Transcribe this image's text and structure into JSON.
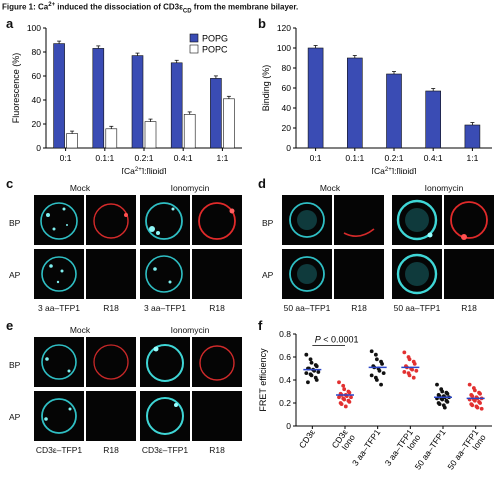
{
  "figure": {
    "title_prefix": "Figure 1: Ca",
    "title_sup": "2+",
    "title_mid": " induced the dissociation of CD3ε",
    "title_sub": "CD",
    "title_suffix": " from the membrane bilayer."
  },
  "colors": {
    "popg": "#3a4cb4",
    "popc": "#ffffff",
    "cyan": "#3fd6d6",
    "red": "#e23030",
    "black_dot": "#111111",
    "mean_line": "#2a45c8"
  },
  "panels": {
    "a": {
      "letter": "a"
    },
    "b": {
      "letter": "b"
    },
    "c": {
      "letter": "c",
      "mock": "Mock",
      "iono": "Ionomycin",
      "row1": "BP",
      "row2": "AP",
      "cap1": "3 aa–TFP1",
      "cap2": "R18",
      "cap3": "3 aa–TFP1",
      "cap4": "R18"
    },
    "d": {
      "letter": "d",
      "mock": "Mock",
      "iono": "Ionomycin",
      "row1": "BP",
      "row2": "AP",
      "cap1": "50 aa–TFP1",
      "cap2": "R18",
      "cap3": "50 aa–TFP1",
      "cap4": "R18"
    },
    "e": {
      "letter": "e",
      "mock": "Mock",
      "iono": "Ionomycin",
      "row1": "BP",
      "row2": "AP",
      "cap1": "CD3ε–TFP1",
      "cap2": "R18",
      "cap3": "CD3ε–TFP1",
      "cap4": "R18"
    },
    "f": {
      "letter": "f"
    }
  },
  "chart_data": [
    {
      "id": "a",
      "type": "bar",
      "categories": [
        "0:1",
        "0.1:1",
        "0.2:1",
        "0.4:1",
        "1:1"
      ],
      "series": [
        {
          "name": "POPG",
          "values": [
            87,
            83,
            77,
            71,
            58
          ]
        },
        {
          "name": "POPC",
          "values": [
            12,
            16,
            22,
            28,
            41
          ]
        }
      ],
      "xlabel": "[Ca2+]:[lipid]",
      "ylabel": "Fluorescence (%)",
      "ylim": [
        0,
        100
      ],
      "yticks": [
        0,
        20,
        40,
        60,
        80,
        100
      ],
      "legend": "top-right",
      "error_bars": true
    },
    {
      "id": "b",
      "type": "bar",
      "categories": [
        "0:1",
        "0.1:1",
        "0.2:1",
        "0.4:1",
        "1:1"
      ],
      "series": [
        {
          "values": [
            100,
            90,
            74,
            57,
            23
          ]
        }
      ],
      "xlabel": "[Ca2+]:[lipid]",
      "ylabel": "Binding (%)",
      "ylim": [
        0,
        120
      ],
      "yticks": [
        0,
        20,
        40,
        60,
        80,
        100,
        120
      ],
      "error_bars": true
    },
    {
      "id": "f",
      "type": "scatter",
      "categories": [
        "CD3ε",
        "CD3ε Iono",
        "3 aa–TFP1",
        "3 aa–TFP1 Iono",
        "50 aa–TFP1",
        "50 aa–TFP1 Iono"
      ],
      "ylabel": "FRET efficiency",
      "ylim": [
        0,
        0.8
      ],
      "yticks": [
        0,
        0.2,
        0.4,
        0.6,
        0.8
      ],
      "means": [
        0.49,
        0.27,
        0.51,
        0.51,
        0.25,
        0.24
      ],
      "annotation": "P < 0.0001",
      "points": [
        [
          0.62,
          0.58,
          0.55,
          0.53,
          0.52,
          0.5,
          0.5,
          0.49,
          0.48,
          0.47,
          0.46,
          0.45,
          0.44,
          0.42,
          0.4,
          0.38
        ],
        [
          0.38,
          0.35,
          0.32,
          0.3,
          0.29,
          0.28,
          0.27,
          0.27,
          0.26,
          0.25,
          0.25,
          0.24,
          0.23,
          0.22,
          0.21,
          0.2,
          0.19,
          0.17
        ],
        [
          0.65,
          0.62,
          0.58,
          0.56,
          0.54,
          0.52,
          0.51,
          0.5,
          0.48,
          0.46,
          0.44,
          0.42,
          0.4,
          0.36
        ],
        [
          0.64,
          0.6,
          0.58,
          0.56,
          0.54,
          0.52,
          0.51,
          0.5,
          0.49,
          0.48,
          0.47,
          0.46,
          0.44,
          0.42
        ],
        [
          0.36,
          0.32,
          0.3,
          0.29,
          0.28,
          0.27,
          0.26,
          0.26,
          0.25,
          0.25,
          0.24,
          0.24,
          0.23,
          0.22,
          0.21,
          0.2,
          0.19,
          0.18,
          0.16
        ],
        [
          0.36,
          0.33,
          0.31,
          0.29,
          0.28,
          0.27,
          0.26,
          0.25,
          0.24,
          0.24,
          0.23,
          0.23,
          0.22,
          0.21,
          0.2,
          0.19,
          0.18,
          0.17,
          0.16,
          0.15
        ]
      ],
      "point_colors": [
        "black",
        "red",
        "black",
        "red",
        "black",
        "red"
      ]
    }
  ]
}
